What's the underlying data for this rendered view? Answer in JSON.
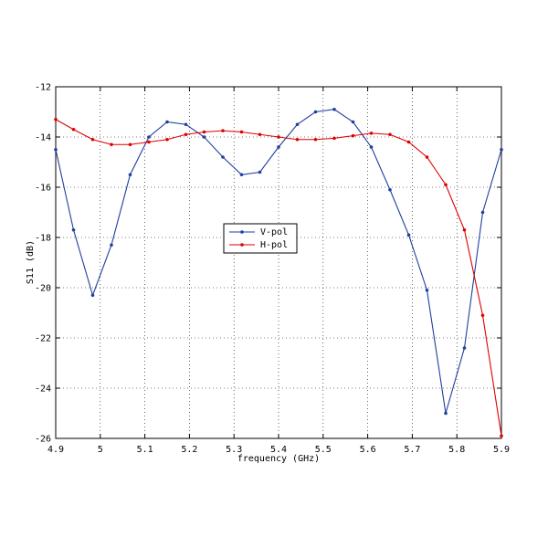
{
  "chart_data": {
    "type": "line",
    "title": "",
    "xlabel": "frequency (GHz)",
    "ylabel": "S11 (dB)",
    "xlim": [
      4.9,
      5.9
    ],
    "ylim": [
      -26,
      -12
    ],
    "xticks": [
      4.9,
      5.0,
      5.1,
      5.2,
      5.3,
      5.4,
      5.5,
      5.6,
      5.7,
      5.8,
      5.9
    ],
    "xtick_labels": [
      "4.9",
      "5",
      "5.1",
      "5.2",
      "5.3",
      "5.4",
      "5.5",
      "5.6",
      "5.7",
      "5.8",
      "5.9"
    ],
    "yticks": [
      -26,
      -24,
      -22,
      -20,
      -18,
      -16,
      -14,
      -12
    ],
    "ytick_labels": [
      "-26",
      "-24",
      "-22",
      "-20",
      "-18",
      "-16",
      "-14",
      "-12"
    ],
    "grid": true,
    "legend_position": "center-left",
    "series": [
      {
        "name": "V-pol",
        "color": "#1f3f9f",
        "x": [
          4.9,
          4.94,
          4.983,
          5.025,
          5.067,
          5.109,
          5.15,
          5.192,
          5.233,
          5.275,
          5.317,
          5.358,
          5.4,
          5.442,
          5.483,
          5.525,
          5.567,
          5.608,
          5.65,
          5.692,
          5.733,
          5.775,
          5.817,
          5.858,
          5.9
        ],
        "y": [
          -14.5,
          -17.7,
          -20.3,
          -18.3,
          -15.5,
          -14.0,
          -13.4,
          -13.5,
          -14.0,
          -14.8,
          -15.5,
          -15.4,
          -14.4,
          -13.5,
          -13.0,
          -12.9,
          -13.4,
          -14.4,
          -16.1,
          -17.9,
          -20.1,
          -25.0,
          -22.4,
          -17.0,
          -14.5
        ]
      },
      {
        "name": "H-pol",
        "color": "#e00000",
        "x": [
          4.9,
          4.94,
          4.983,
          5.025,
          5.067,
          5.109,
          5.15,
          5.192,
          5.233,
          5.275,
          5.317,
          5.358,
          5.4,
          5.442,
          5.483,
          5.525,
          5.567,
          5.608,
          5.65,
          5.692,
          5.733,
          5.775,
          5.817,
          5.858,
          5.9
        ],
        "y": [
          -13.3,
          -13.7,
          -14.1,
          -14.3,
          -14.3,
          -14.2,
          -14.1,
          -13.9,
          -13.8,
          -13.75,
          -13.8,
          -13.9,
          -14.0,
          -14.1,
          -14.1,
          -14.05,
          -13.95,
          -13.85,
          -13.9,
          -14.2,
          -14.8,
          -15.9,
          -17.7,
          -21.1,
          -25.9
        ]
      }
    ]
  }
}
